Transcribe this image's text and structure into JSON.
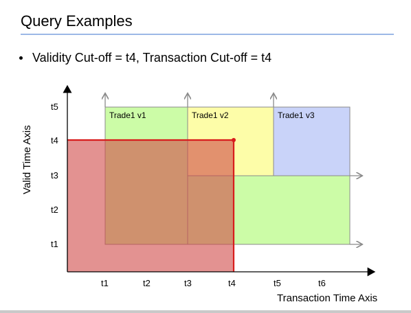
{
  "slide": {
    "title": "Query Examples",
    "bullet": "Validity Cut-off = t4, Transaction Cut-off = t4"
  },
  "diagram": {
    "y_axis_label": "Valid Time Axis",
    "x_axis_label": "Transaction Time Axis",
    "x_ticks": [
      "t1",
      "t2",
      "t3",
      "t4",
      "t5",
      "t6"
    ],
    "y_ticks": [
      "t1",
      "t2",
      "t3",
      "t4",
      "t5"
    ],
    "versions": [
      {
        "label": "Trade1 v1",
        "color": "#ccfca7"
      },
      {
        "label": "Trade1 v2",
        "color": "#fdfda8"
      },
      {
        "label": "Trade1 v3",
        "color": "#c9d3f9"
      }
    ],
    "cutoff_color": "#d81c1c",
    "cutoff_fill": "#e49491"
  }
}
